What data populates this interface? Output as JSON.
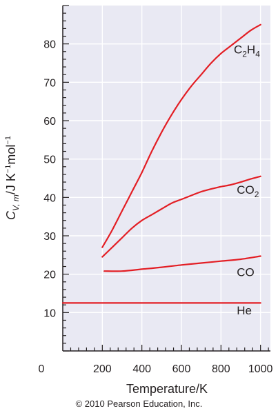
{
  "chart_data": {
    "type": "line",
    "xlabel": "Temperature/K",
    "ylabel": "C_V,m/J K^-1 mol^-1",
    "xlim": [
      0,
      1050
    ],
    "ylim": [
      0,
      90
    ],
    "x_ticks": [
      0,
      200,
      400,
      600,
      800,
      1000
    ],
    "y_ticks": [
      10,
      20,
      30,
      40,
      50,
      60,
      70,
      80
    ],
    "x_tick_labels": [
      "0",
      "200",
      "400",
      "600",
      "800",
      "1000"
    ],
    "y_tick_labels": [
      "10",
      "20",
      "30",
      "40",
      "50",
      "60",
      "70",
      "80"
    ],
    "grid": true,
    "background": "#e9e9f3",
    "line_color": "#e31e24",
    "series": [
      {
        "name": "C2H4",
        "x": [
          200,
          250,
          300,
          350,
          400,
          450,
          500,
          550,
          600,
          650,
          700,
          750,
          800,
          850,
          900,
          950,
          1000
        ],
        "values": [
          27,
          31.5,
          36.5,
          41.5,
          46.5,
          52,
          57,
          61.5,
          65.5,
          69,
          72,
          75,
          77.5,
          79.5,
          81.5,
          83.5,
          85
        ]
      },
      {
        "name": "CO2",
        "x": [
          200,
          250,
          300,
          350,
          400,
          450,
          500,
          550,
          600,
          650,
          700,
          750,
          800,
          850,
          900,
          950,
          1000
        ],
        "values": [
          24.5,
          27,
          29.5,
          32,
          34,
          35.5,
          37,
          38.5,
          39.5,
          40.5,
          41.5,
          42.2,
          42.8,
          43.3,
          44,
          44.8,
          45.5
        ]
      },
      {
        "name": "CO",
        "x": [
          210,
          300,
          400,
          500,
          600,
          700,
          800,
          900,
          1000
        ],
        "values": [
          20.8,
          20.8,
          21.3,
          21.8,
          22.4,
          22.9,
          23.4,
          23.9,
          24.7
        ]
      },
      {
        "name": "He",
        "x": [
          0,
          1000
        ],
        "values": [
          12.5,
          12.5
        ]
      }
    ],
    "series_labels": [
      {
        "parts": [
          [
            "C",
            ""
          ],
          [
            "2",
            "sub"
          ],
          [
            "H",
            ""
          ],
          [
            "4",
            "sub"
          ]
        ],
        "at": [
          865,
          77.5
        ]
      },
      {
        "parts": [
          [
            "CO",
            ""
          ],
          [
            "2",
            "sub"
          ]
        ],
        "at": [
          880,
          41
        ]
      },
      {
        "parts": [
          [
            "CO",
            ""
          ]
        ],
        "at": [
          880,
          19.5
        ]
      },
      {
        "parts": [
          [
            "He",
            ""
          ]
        ],
        "at": [
          880,
          9.5
        ]
      }
    ]
  },
  "copyright": "© 2010 Pearson Education, Inc."
}
